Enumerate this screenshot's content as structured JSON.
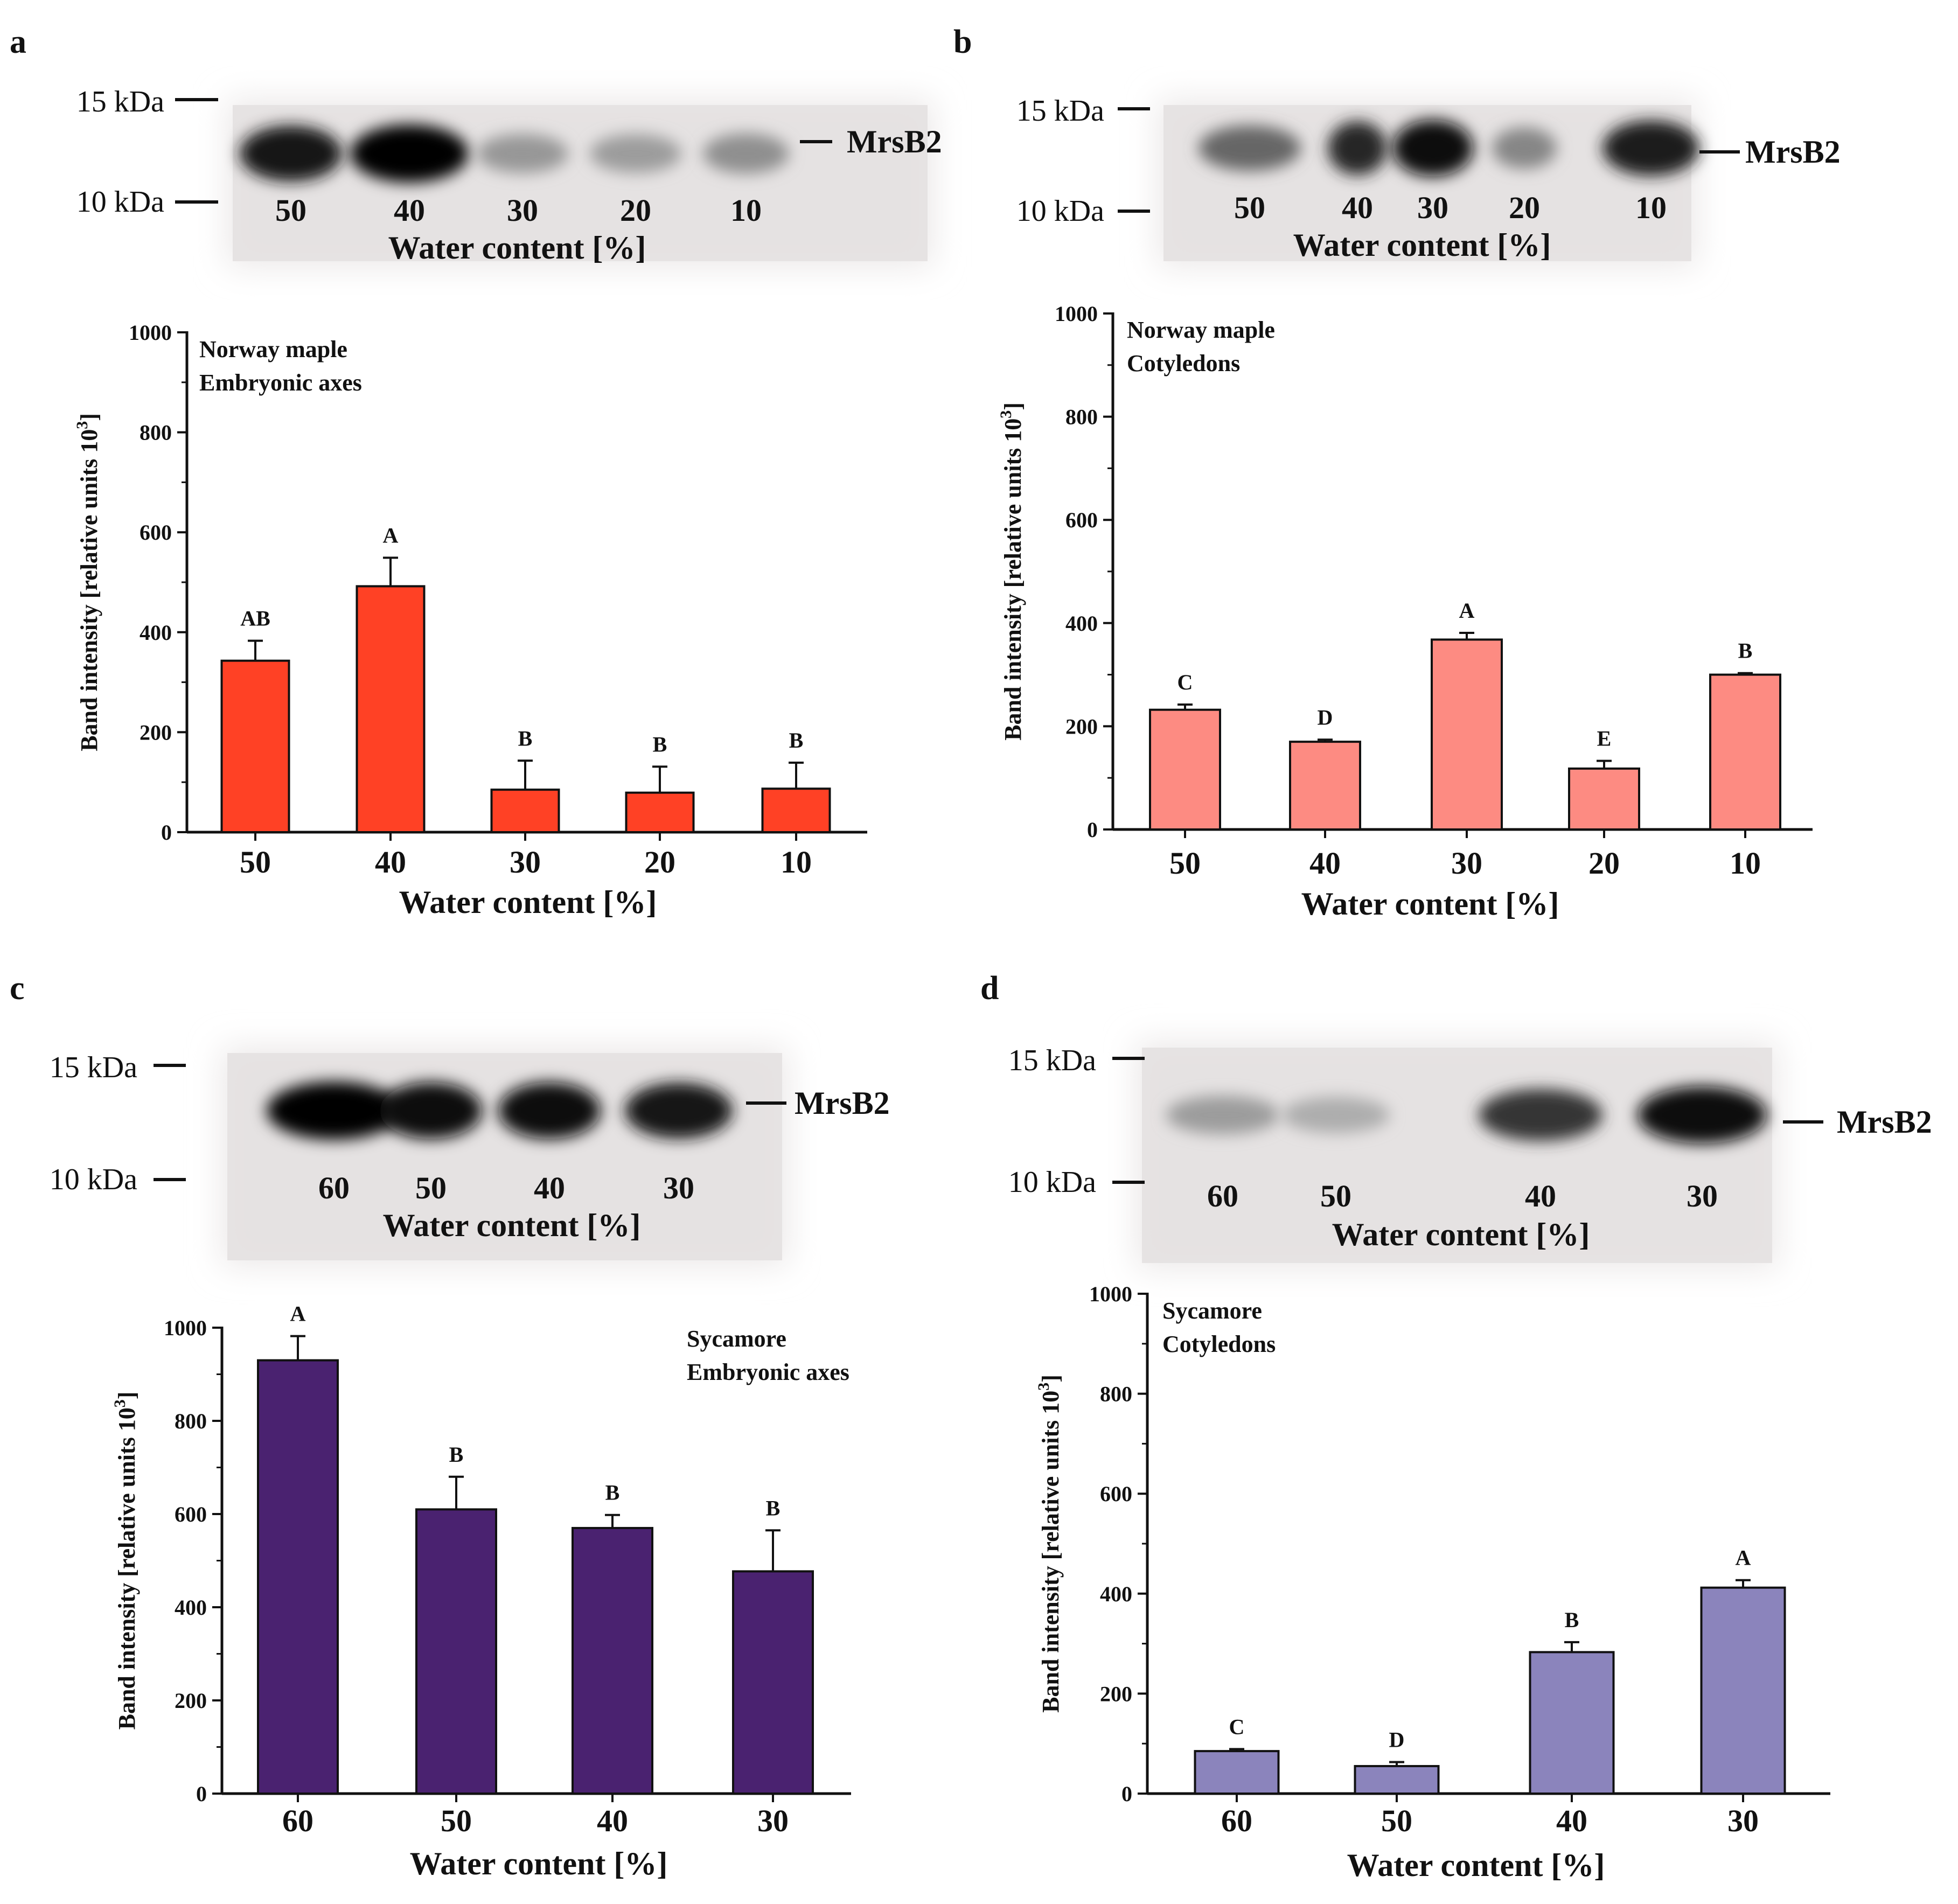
{
  "blot_marker_label": "MrsB2",
  "chart_data": [
    {
      "panel": "a",
      "type": "bar",
      "title": "Norway maple",
      "subtitle": "Embryonic axes",
      "xlabel": "Water content [%]",
      "ylabel": "Band intensity [relative units 10",
      "ylabel_sup": "3",
      "ylabel_end": "]",
      "categories": [
        "50",
        "40",
        "30",
        "20",
        "10"
      ],
      "values": [
        343,
        492,
        85,
        79,
        87
      ],
      "errors": [
        40,
        57,
        58,
        52,
        52
      ],
      "letters": [
        "AB",
        "A",
        "B",
        "B",
        "B"
      ],
      "ylim": [
        0,
        1000
      ],
      "yticks": [
        0,
        200,
        400,
        600,
        800,
        1000
      ],
      "color": "#ff4125",
      "blot": {
        "marker_top": "15 kDa",
        "marker_bottom": "10 kDa",
        "lanes": [
          "50",
          "40",
          "30",
          "20",
          "10"
        ],
        "lane_intensity": [
          0.92,
          1.0,
          0.32,
          0.3,
          0.36
        ],
        "xlabel": "Water content [%]"
      }
    },
    {
      "panel": "b",
      "type": "bar",
      "title": "Norway maple",
      "subtitle": "Cotyledons",
      "xlabel": "Water content [%]",
      "ylabel": "Band intensity [relative units 10",
      "ylabel_sup": "3",
      "ylabel_end": "]",
      "categories": [
        "50",
        "40",
        "30",
        "20",
        "10"
      ],
      "values": [
        232,
        170,
        368,
        118,
        300
      ],
      "errors": [
        10,
        4,
        13,
        15,
        3
      ],
      "letters": [
        "C",
        "D",
        "A",
        "E",
        "B"
      ],
      "ylim": [
        0,
        1000
      ],
      "yticks": [
        0,
        200,
        400,
        600,
        800,
        1000
      ],
      "color": "#fd8b82",
      "blot": {
        "marker_top": "15 kDa",
        "marker_bottom": "10 kDa",
        "lanes": [
          "50",
          "40",
          "30",
          "20",
          "10"
        ],
        "lane_intensity": [
          0.55,
          0.85,
          0.95,
          0.4,
          0.9
        ],
        "xlabel": "Water content [%]"
      }
    },
    {
      "panel": "c",
      "type": "bar",
      "title": "Sycamore",
      "subtitle": "Embryonic axes",
      "xlabel": "Water content [%]",
      "ylabel": "Band intensity [relative units 10",
      "ylabel_sup": "3",
      "ylabel_end": "]",
      "categories": [
        "60",
        "50",
        "40",
        "30"
      ],
      "values": [
        930,
        610,
        570,
        477
      ],
      "errors": [
        52,
        70,
        28,
        88
      ],
      "letters": [
        "A",
        "B",
        "B",
        "B"
      ],
      "ylim": [
        0,
        1000
      ],
      "yticks": [
        0,
        200,
        400,
        600,
        800,
        1000
      ],
      "color": "#4a2270",
      "blot": {
        "marker_top": "15 kDa",
        "marker_bottom": "10 kDa",
        "lanes": [
          "60",
          "50",
          "40",
          "30"
        ],
        "lane_intensity": [
          1.0,
          0.95,
          0.95,
          0.92
        ],
        "xlabel": "Water content [%]"
      }
    },
    {
      "panel": "d",
      "type": "bar",
      "title": "Sycamore",
      "subtitle": "Cotyledons",
      "xlabel": "Water content [%]",
      "ylabel": "Band intensity [relative units 10",
      "ylabel_sup": "3",
      "ylabel_end": "]",
      "categories": [
        "60",
        "50",
        "40",
        "30"
      ],
      "values": [
        85,
        55,
        283,
        412
      ],
      "errors": [
        4,
        8,
        20,
        15
      ],
      "letters": [
        "C",
        "D",
        "B",
        "A"
      ],
      "ylim": [
        0,
        1000
      ],
      "yticks": [
        0,
        200,
        400,
        600,
        800,
        1000
      ],
      "color": "#8b84bc",
      "blot": {
        "marker_top": "15 kDa",
        "marker_bottom": "10 kDa",
        "lanes": [
          "60",
          "50",
          "40",
          "30"
        ],
        "lane_intensity": [
          0.3,
          0.22,
          0.78,
          0.97
        ],
        "xlabel": "Water content [%]"
      }
    }
  ]
}
